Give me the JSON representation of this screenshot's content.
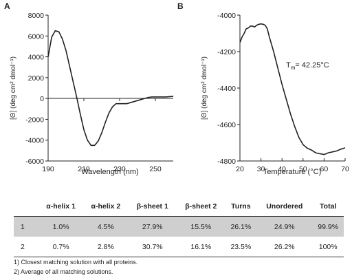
{
  "panels": {
    "a_label": "A",
    "b_label": "B",
    "tm_main": "T",
    "tm_sub": "m",
    "tm_value": "= 42.25°C"
  },
  "chart_data": [
    {
      "type": "line",
      "xlabel": "Wavelength (nm)",
      "ylabel": "[Θ] (deg cm² dmol⁻¹)",
      "xlim": [
        190,
        260
      ],
      "ylim": [
        -6000,
        8000
      ],
      "xticks": [
        190,
        210,
        230,
        250
      ],
      "yticks": [
        8000,
        6000,
        4000,
        2000,
        0,
        -2000,
        -4000,
        -6000
      ],
      "x": [
        190,
        192,
        194,
        196,
        198,
        200,
        202,
        204,
        206,
        208,
        210,
        212,
        214,
        216,
        218,
        220,
        222,
        224,
        226,
        228,
        230,
        232,
        234,
        236,
        238,
        240,
        242,
        244,
        246,
        248,
        250,
        252,
        254,
        256,
        258,
        260
      ],
      "y": [
        4000,
        5900,
        6500,
        6400,
        5700,
        4600,
        3100,
        1600,
        100,
        -1500,
        -3000,
        -4000,
        -4500,
        -4500,
        -4100,
        -3300,
        -2300,
        -1400,
        -800,
        -500,
        -500,
        -500,
        -500,
        -400,
        -300,
        -200,
        -100,
        0,
        100,
        150,
        150,
        150,
        150,
        150,
        180,
        200
      ]
    },
    {
      "type": "line",
      "xlabel": "Temperature (°C)",
      "ylabel": "[Θ] (deg cm² dmol⁻¹)",
      "xlim": [
        20,
        70
      ],
      "ylim": [
        -4800,
        -4000
      ],
      "xticks": [
        20,
        30,
        40,
        50,
        60,
        70
      ],
      "yticks": [
        -4000,
        -4200,
        -4400,
        -4600,
        -4800
      ],
      "annotation": "Tm= 42.25°C",
      "x": [
        20,
        21,
        22,
        23,
        24,
        25,
        26,
        27,
        28,
        29,
        30,
        31,
        32,
        33,
        34,
        36,
        38,
        40,
        42,
        44,
        46,
        48,
        50,
        52,
        54,
        56,
        57,
        58,
        59,
        60,
        61,
        62,
        64,
        66,
        68,
        70
      ],
      "y": [
        -4150,
        -4120,
        -4100,
        -4075,
        -4070,
        -4060,
        -4060,
        -4065,
        -4055,
        -4050,
        -4048,
        -4050,
        -4055,
        -4075,
        -4120,
        -4200,
        -4290,
        -4380,
        -4460,
        -4540,
        -4610,
        -4670,
        -4710,
        -4730,
        -4740,
        -4755,
        -4758,
        -4760,
        -4762,
        -4765,
        -4760,
        -4755,
        -4750,
        -4745,
        -4735,
        -4728
      ]
    }
  ],
  "table": {
    "headers": [
      "",
      "α-helix 1",
      "α-helix 2",
      "β-sheet 1",
      "β-sheet 2",
      "Turns",
      "Unordered",
      "Total"
    ],
    "rows": [
      [
        "1",
        "1.0%",
        "4.5%",
        "27.9%",
        "15.5%",
        "26.1%",
        "24.9%",
        "99.9%"
      ],
      [
        "2",
        "0.7%",
        "2.8%",
        "30.7%",
        "16.1%",
        "23.5%",
        "26.2%",
        "100%"
      ]
    ]
  },
  "footnotes": [
    "1)   Closest matching solution with all proteins.",
    "2)   Average of all matching solutions."
  ]
}
